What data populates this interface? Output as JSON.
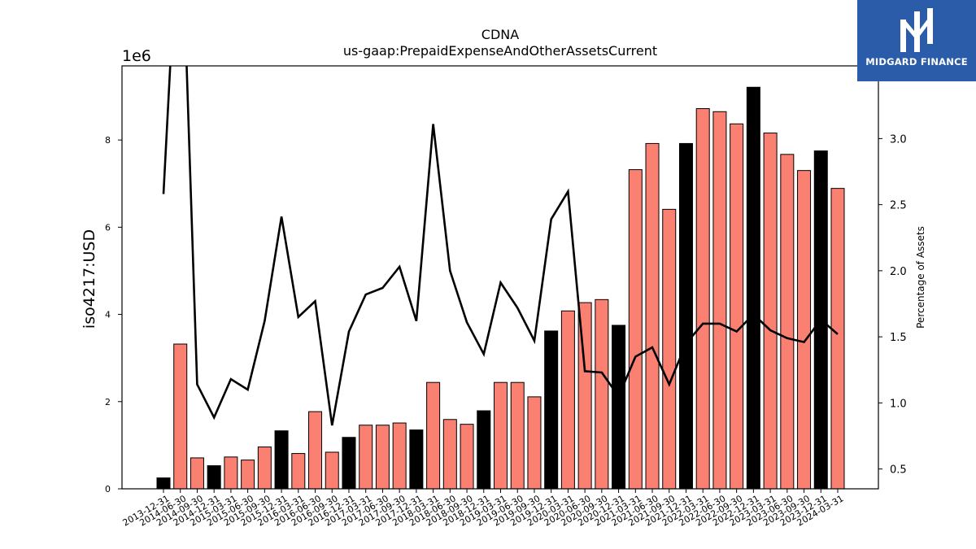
{
  "chart_data": {
    "type": "bar",
    "title": "CDNA",
    "subtitle": "us-gaap:PrepaidExpenseAndOtherAssetsCurrent",
    "ylabel": "iso4217:USD",
    "y_multiplier": "1e6",
    "y2label": "Percentage of Assets",
    "ylim": [
      0,
      9700000
    ],
    "y2lim": [
      0.35,
      3.55
    ],
    "yticks": [
      "0",
      "2",
      "4",
      "6",
      "8"
    ],
    "y2ticks": [
      "0.5",
      "1.0",
      "1.5",
      "2.0",
      "2.5",
      "3.0"
    ],
    "grid": false,
    "categories": [
      "2013-12-31",
      "2014-06-30",
      "2014-09-30",
      "2014-12-31",
      "2015-03-31",
      "2015-06-30",
      "2015-09-30",
      "2015-12-31",
      "2016-03-31",
      "2016-06-30",
      "2016-09-30",
      "2016-12-31",
      "2017-03-31",
      "2017-06-30",
      "2017-09-30",
      "2017-12-31",
      "2018-03-31",
      "2018-06-30",
      "2018-09-30",
      "2018-12-31",
      "2019-03-31",
      "2019-06-30",
      "2019-09-30",
      "2019-12-31",
      "2020-03-31",
      "2020-06-30",
      "2020-09-30",
      "2020-12-31",
      "2021-03-31",
      "2021-06-30",
      "2021-09-30",
      "2021-12-31",
      "2022-03-31",
      "2022-06-30",
      "2022-09-30",
      "2022-12-31",
      "2023-03-31",
      "2023-06-30",
      "2023-09-30",
      "2023-12-31",
      "2024-03-31"
    ],
    "series": [
      {
        "kind": "bar",
        "values": [
          250000,
          3320000,
          710000,
          530000,
          730000,
          660000,
          960000,
          1330000,
          810000,
          1770000,
          840000,
          1180000,
          1460000,
          1460000,
          1510000,
          1350000,
          2440000,
          1590000,
          1480000,
          1790000,
          2440000,
          2440000,
          2110000,
          3620000,
          4080000,
          4270000,
          4340000,
          3750000,
          7320000,
          7920000,
          6410000,
          7920000,
          8720000,
          8650000,
          8370000,
          9210000,
          8160000,
          7670000,
          7300000,
          7750000,
          6890000
        ],
        "highlight": [
          true,
          false,
          false,
          true,
          false,
          false,
          false,
          true,
          false,
          false,
          false,
          true,
          false,
          false,
          false,
          true,
          false,
          false,
          false,
          true,
          false,
          false,
          false,
          true,
          false,
          false,
          false,
          true,
          false,
          false,
          false,
          true,
          false,
          false,
          false,
          true,
          false,
          false,
          false,
          true,
          false
        ],
        "colors": {
          "highlight": "#000000",
          "normal": "#fa8072"
        }
      },
      {
        "kind": "line",
        "axis": "right",
        "values": [
          2.58,
          5.0,
          1.14,
          0.89,
          1.18,
          1.1,
          1.62,
          2.41,
          1.65,
          1.77,
          0.83,
          1.54,
          1.82,
          1.87,
          2.03,
          1.62,
          3.11,
          2.0,
          1.61,
          1.37,
          1.91,
          1.72,
          1.47,
          2.39,
          2.6,
          1.24,
          1.23,
          1.05,
          1.35,
          1.42,
          1.14,
          1.45,
          1.6,
          1.6,
          1.54,
          1.67,
          1.55,
          1.49,
          1.46,
          1.63,
          1.52
        ],
        "color": "#000000"
      }
    ]
  },
  "logo": {
    "name": "MIDGARD FINANCE",
    "mark": "M-monogram-icon",
    "color": "#2a5caa"
  }
}
